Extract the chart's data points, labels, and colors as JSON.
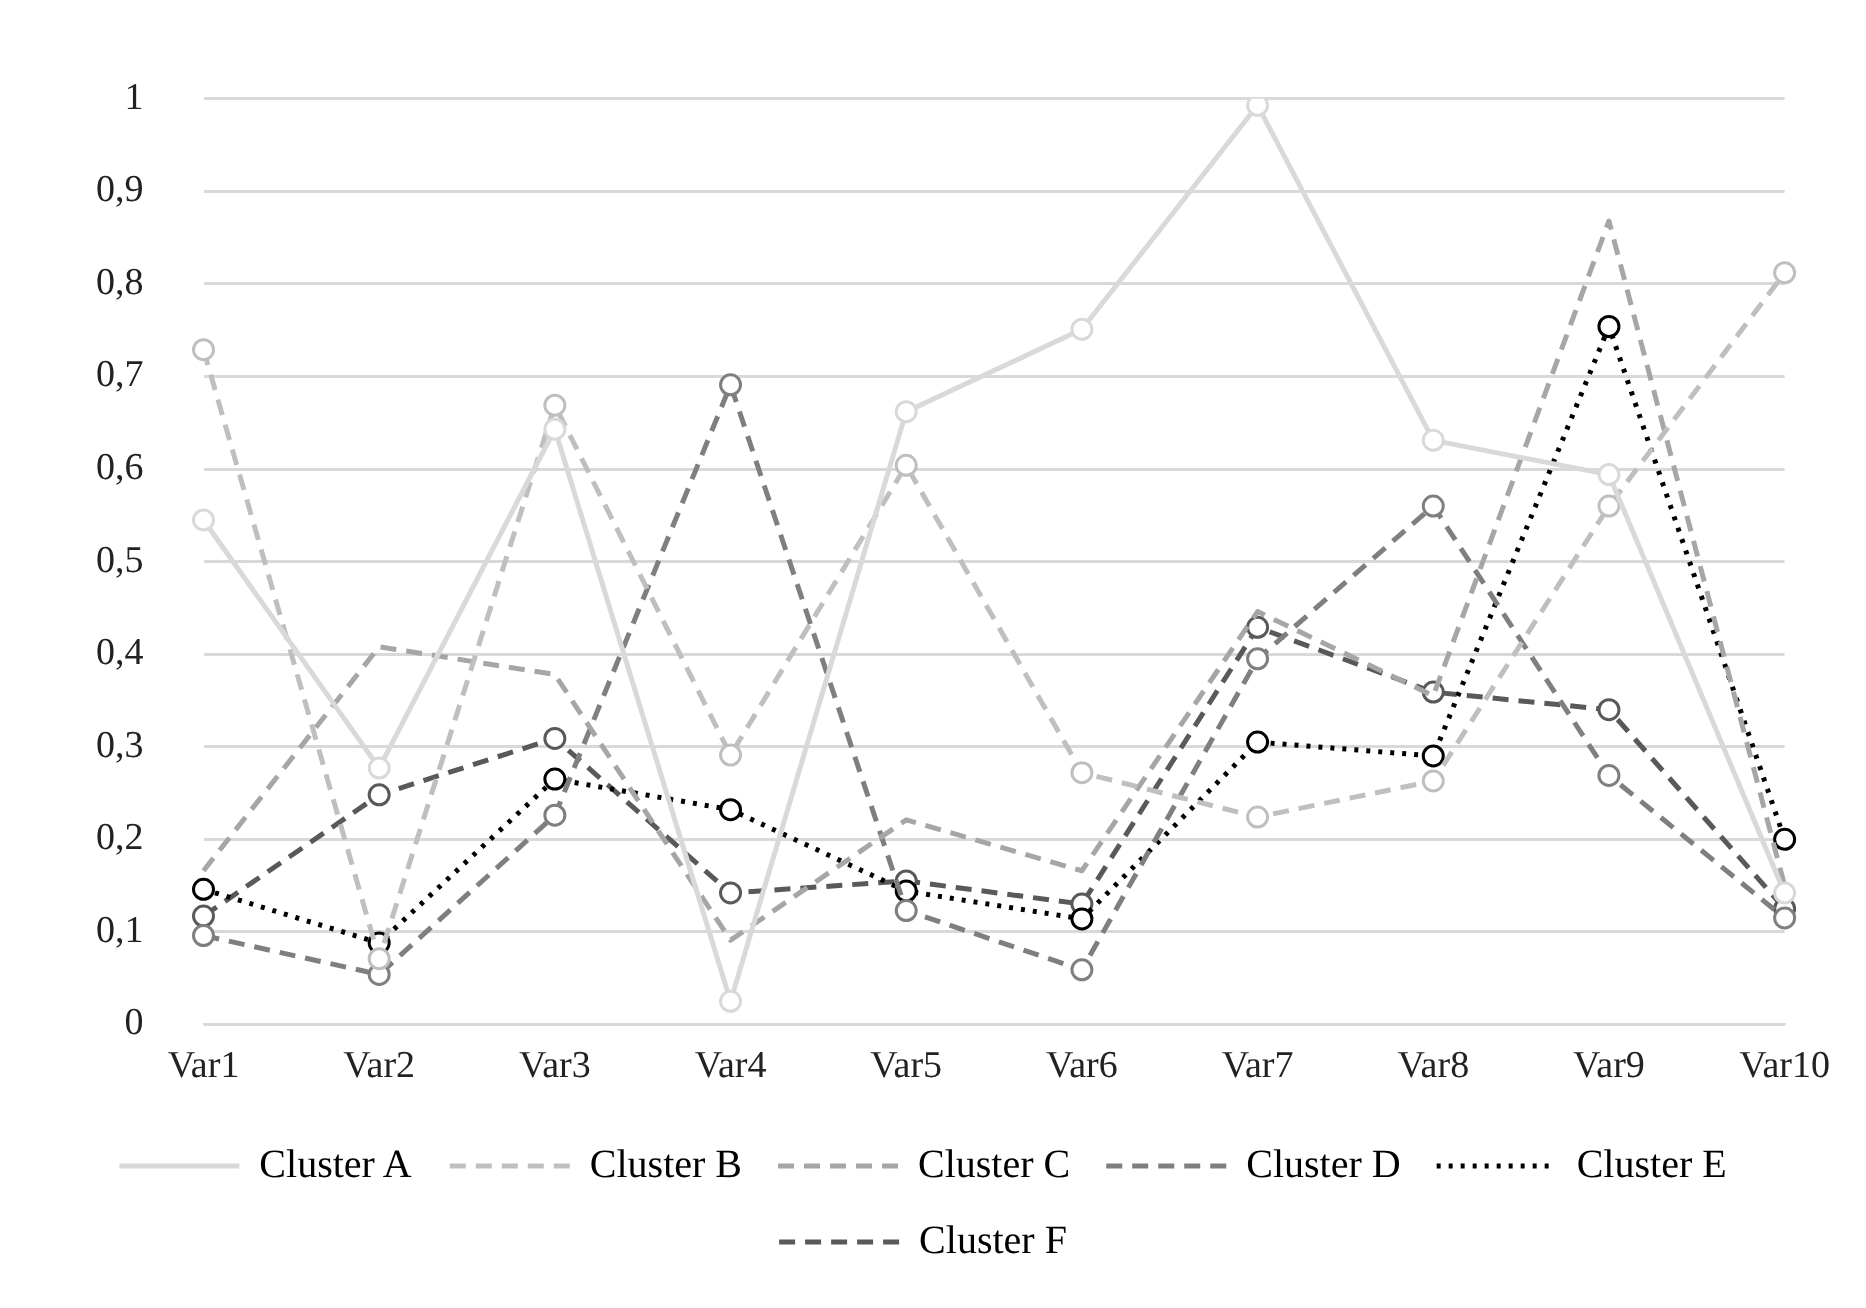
{
  "chart_data": {
    "type": "line",
    "categories": [
      "Var1",
      "Var2",
      "Var3",
      "Var4",
      "Var5",
      "Var6",
      "Var7",
      "Var8",
      "Var9",
      "Var10"
    ],
    "series": [
      {
        "name": "Cluster A",
        "color": "#d9d9d9",
        "line_style": "solid",
        "marker": "circle",
        "values": [
          0.545,
          0.277,
          0.643,
          0.025,
          0.662,
          0.751,
          0.993,
          0.631,
          0.594,
          0.142
        ]
      },
      {
        "name": "Cluster B",
        "color": "#bfbfbf",
        "line_style": "dashed",
        "marker": "circle",
        "values": [
          0.729,
          0.071,
          0.669,
          0.291,
          0.604,
          0.272,
          0.224,
          0.263,
          0.56,
          0.812
        ]
      },
      {
        "name": "Cluster C",
        "color": "#a6a6a6",
        "line_style": "dashed",
        "marker": "none",
        "values": [
          0.166,
          0.408,
          0.378,
          0.091,
          0.221,
          0.166,
          0.446,
          0.355,
          0.868,
          0.15
        ]
      },
      {
        "name": "Cluster D",
        "color": "#7f7f7f",
        "line_style": "dashed",
        "marker": "circle",
        "values": [
          0.096,
          0.054,
          0.226,
          0.691,
          0.123,
          0.059,
          0.395,
          0.56,
          0.269,
          0.115
        ]
      },
      {
        "name": "Cluster E",
        "color": "#000000",
        "line_style": "dotted",
        "marker": "circle",
        "values": [
          0.146,
          0.088,
          0.265,
          0.232,
          0.144,
          0.114,
          0.305,
          0.29,
          0.754,
          0.2
        ]
      },
      {
        "name": "Cluster F",
        "color": "#595959",
        "line_style": "dashed",
        "marker": "circle",
        "values": [
          0.117,
          0.248,
          0.309,
          0.142,
          0.155,
          0.13,
          0.429,
          0.359,
          0.34,
          0.125
        ]
      }
    ],
    "ylim": [
      0,
      1
    ],
    "yticks": [
      0,
      {
        "value": 0.1,
        "label": "0,1"
      },
      {
        "value": 0.2,
        "label": "0,2"
      },
      {
        "value": 0.3,
        "label": "0,3"
      },
      {
        "value": 0.4,
        "label": "0,4"
      },
      {
        "value": 0.5,
        "label": "0,5"
      },
      {
        "value": 0.6,
        "label": "0,6"
      },
      {
        "value": 0.7,
        "label": "0,7"
      },
      {
        "value": 0.8,
        "label": "0,8"
      },
      {
        "value": 0.9,
        "label": "0,9"
      },
      1
    ],
    "grid": "y",
    "legend": "bottom"
  }
}
